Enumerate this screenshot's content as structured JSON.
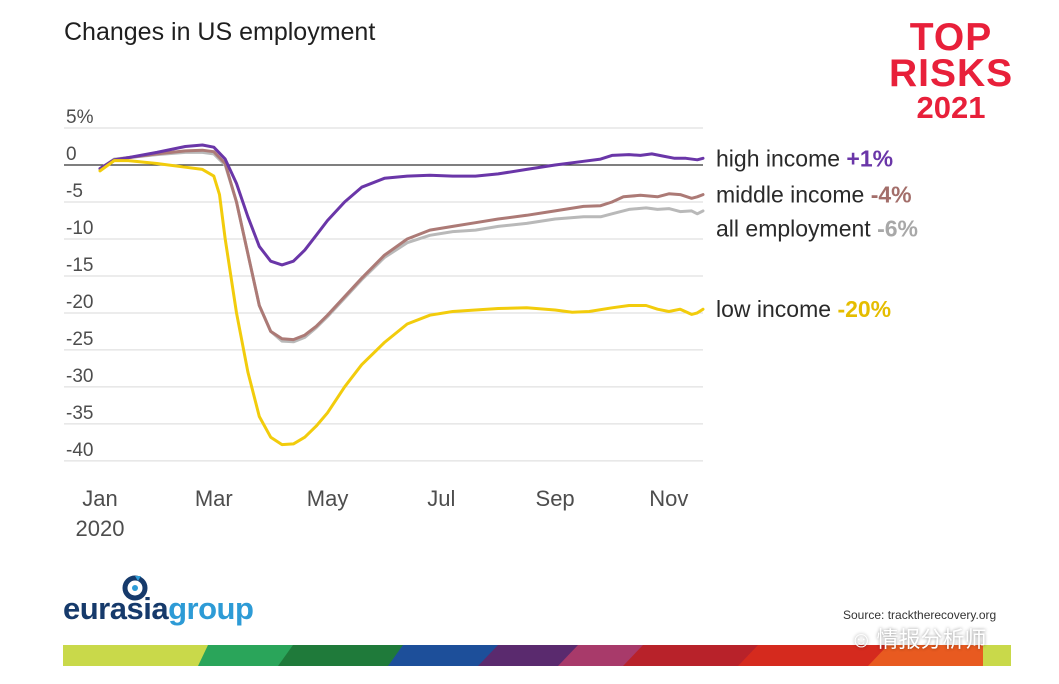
{
  "title": "Changes in US employment",
  "brand": {
    "line1": "TOP",
    "line2": "RISKS",
    "line3": "2021",
    "color": "#e8203a"
  },
  "logo": {
    "part1": "eurasia",
    "part2": "group",
    "color1": "#163a6b",
    "color2": "#2d9bd6"
  },
  "source": "Source: tracktherecovery.org",
  "watermark": "情报分析师",
  "chart_data": {
    "type": "line",
    "title": "Changes in US employment",
    "y_ticks": [
      "5%",
      "0",
      "-5",
      "-10",
      "-15",
      "-20",
      "-25",
      "-30",
      "-35",
      "-40"
    ],
    "y_tick_values": [
      5,
      0,
      -5,
      -10,
      -15,
      -20,
      -25,
      -30,
      -35,
      -40
    ],
    "ylim": [
      -41.5,
      5
    ],
    "x_ticks": [
      {
        "label": "Jan",
        "sublabel": "2020",
        "month": 0
      },
      {
        "label": "Mar",
        "sublabel": "",
        "month": 2
      },
      {
        "label": "May",
        "sublabel": "",
        "month": 4
      },
      {
        "label": "Jul",
        "sublabel": "",
        "month": 6
      },
      {
        "label": "Sep",
        "sublabel": "",
        "month": 8
      },
      {
        "label": "Nov",
        "sublabel": "",
        "month": 10
      }
    ],
    "xlim": [
      0,
      10.6
    ],
    "grid": true,
    "series": [
      {
        "name": "all employment",
        "value_label": "-6%",
        "color": "#b9b9b9",
        "value_color": "#a8a8a8",
        "points": [
          [
            0.0,
            -0.5
          ],
          [
            0.25,
            0.8
          ],
          [
            0.5,
            1.0
          ],
          [
            1.0,
            1.4
          ],
          [
            1.5,
            1.7
          ],
          [
            1.8,
            1.7
          ],
          [
            2.0,
            1.5
          ],
          [
            2.2,
            0.0
          ],
          [
            2.4,
            -5.0
          ],
          [
            2.6,
            -12.0
          ],
          [
            2.8,
            -19.0
          ],
          [
            3.0,
            -22.5
          ],
          [
            3.2,
            -23.8
          ],
          [
            3.4,
            -23.9
          ],
          [
            3.6,
            -23.3
          ],
          [
            3.8,
            -22.0
          ],
          [
            4.0,
            -20.5
          ],
          [
            4.3,
            -18.0
          ],
          [
            4.6,
            -15.5
          ],
          [
            5.0,
            -12.5
          ],
          [
            5.4,
            -10.5
          ],
          [
            5.8,
            -9.5
          ],
          [
            6.2,
            -9.0
          ],
          [
            6.6,
            -8.8
          ],
          [
            7.0,
            -8.3
          ],
          [
            7.5,
            -7.9
          ],
          [
            8.0,
            -7.3
          ],
          [
            8.5,
            -7.0
          ],
          [
            8.8,
            -7.0
          ],
          [
            9.0,
            -6.6
          ],
          [
            9.3,
            -6.0
          ],
          [
            9.6,
            -5.8
          ],
          [
            9.8,
            -6.0
          ],
          [
            10.0,
            -5.9
          ],
          [
            10.2,
            -6.3
          ],
          [
            10.4,
            -6.2
          ],
          [
            10.5,
            -6.6
          ],
          [
            10.6,
            -6.2
          ]
        ]
      },
      {
        "name": "middle income",
        "value_label": "-4%",
        "color": "#ac7a76",
        "value_color": "#a36e6a",
        "points": [
          [
            0.0,
            -0.5
          ],
          [
            0.25,
            0.7
          ],
          [
            0.5,
            1.0
          ],
          [
            1.0,
            1.5
          ],
          [
            1.5,
            1.9
          ],
          [
            1.8,
            2.0
          ],
          [
            2.0,
            1.8
          ],
          [
            2.2,
            0.2
          ],
          [
            2.4,
            -5.0
          ],
          [
            2.6,
            -12.0
          ],
          [
            2.8,
            -19.0
          ],
          [
            3.0,
            -22.5
          ],
          [
            3.2,
            -23.5
          ],
          [
            3.4,
            -23.6
          ],
          [
            3.6,
            -23.0
          ],
          [
            3.8,
            -21.8
          ],
          [
            4.0,
            -20.3
          ],
          [
            4.3,
            -17.8
          ],
          [
            4.6,
            -15.3
          ],
          [
            5.0,
            -12.2
          ],
          [
            5.4,
            -10.0
          ],
          [
            5.8,
            -8.8
          ],
          [
            6.2,
            -8.3
          ],
          [
            6.6,
            -7.8
          ],
          [
            7.0,
            -7.3
          ],
          [
            7.5,
            -6.8
          ],
          [
            8.0,
            -6.2
          ],
          [
            8.5,
            -5.6
          ],
          [
            8.8,
            -5.5
          ],
          [
            9.0,
            -5.0
          ],
          [
            9.2,
            -4.3
          ],
          [
            9.5,
            -4.1
          ],
          [
            9.8,
            -4.3
          ],
          [
            10.0,
            -3.9
          ],
          [
            10.2,
            -4.0
          ],
          [
            10.4,
            -4.5
          ],
          [
            10.5,
            -4.3
          ],
          [
            10.6,
            -4.0
          ]
        ]
      },
      {
        "name": "high income",
        "value_label": "+1%",
        "color": "#6a36a8",
        "value_color": "#6a36a8",
        "points": [
          [
            0.0,
            -0.5
          ],
          [
            0.25,
            0.7
          ],
          [
            0.5,
            1.0
          ],
          [
            1.0,
            1.7
          ],
          [
            1.5,
            2.5
          ],
          [
            1.8,
            2.7
          ],
          [
            2.0,
            2.4
          ],
          [
            2.2,
            0.8
          ],
          [
            2.4,
            -2.5
          ],
          [
            2.6,
            -7.0
          ],
          [
            2.8,
            -11.0
          ],
          [
            3.0,
            -13.0
          ],
          [
            3.2,
            -13.5
          ],
          [
            3.4,
            -13.0
          ],
          [
            3.6,
            -11.5
          ],
          [
            3.8,
            -9.5
          ],
          [
            4.0,
            -7.5
          ],
          [
            4.3,
            -5.0
          ],
          [
            4.6,
            -3.0
          ],
          [
            5.0,
            -1.8
          ],
          [
            5.4,
            -1.5
          ],
          [
            5.8,
            -1.4
          ],
          [
            6.2,
            -1.5
          ],
          [
            6.6,
            -1.5
          ],
          [
            7.0,
            -1.2
          ],
          [
            7.5,
            -0.6
          ],
          [
            8.0,
            0.0
          ],
          [
            8.5,
            0.5
          ],
          [
            8.8,
            0.8
          ],
          [
            9.0,
            1.3
          ],
          [
            9.3,
            1.4
          ],
          [
            9.5,
            1.3
          ],
          [
            9.7,
            1.5
          ],
          [
            9.9,
            1.2
          ],
          [
            10.1,
            0.9
          ],
          [
            10.3,
            0.9
          ],
          [
            10.5,
            0.7
          ],
          [
            10.6,
            0.9
          ]
        ]
      },
      {
        "name": "low income",
        "value_label": "-20%",
        "color": "#f2cc0c",
        "value_color": "#e5bd00",
        "points": [
          [
            0.0,
            -0.8
          ],
          [
            0.25,
            0.6
          ],
          [
            0.5,
            0.6
          ],
          [
            1.0,
            0.2
          ],
          [
            1.5,
            -0.3
          ],
          [
            1.8,
            -0.6
          ],
          [
            2.0,
            -1.5
          ],
          [
            2.1,
            -4.0
          ],
          [
            2.2,
            -10.0
          ],
          [
            2.4,
            -20.0
          ],
          [
            2.6,
            -28.0
          ],
          [
            2.8,
            -34.0
          ],
          [
            3.0,
            -36.8
          ],
          [
            3.2,
            -37.8
          ],
          [
            3.4,
            -37.7
          ],
          [
            3.6,
            -36.8
          ],
          [
            3.8,
            -35.3
          ],
          [
            4.0,
            -33.5
          ],
          [
            4.3,
            -30.0
          ],
          [
            4.6,
            -27.0
          ],
          [
            5.0,
            -24.0
          ],
          [
            5.4,
            -21.5
          ],
          [
            5.8,
            -20.3
          ],
          [
            6.2,
            -19.8
          ],
          [
            6.6,
            -19.6
          ],
          [
            7.0,
            -19.4
          ],
          [
            7.5,
            -19.3
          ],
          [
            8.0,
            -19.6
          ],
          [
            8.3,
            -19.9
          ],
          [
            8.6,
            -19.8
          ],
          [
            9.0,
            -19.3
          ],
          [
            9.3,
            -19.0
          ],
          [
            9.6,
            -19.0
          ],
          [
            9.8,
            -19.5
          ],
          [
            10.0,
            -19.8
          ],
          [
            10.2,
            -19.5
          ],
          [
            10.4,
            -20.2
          ],
          [
            10.5,
            -20.0
          ],
          [
            10.6,
            -19.5
          ]
        ]
      }
    ]
  }
}
